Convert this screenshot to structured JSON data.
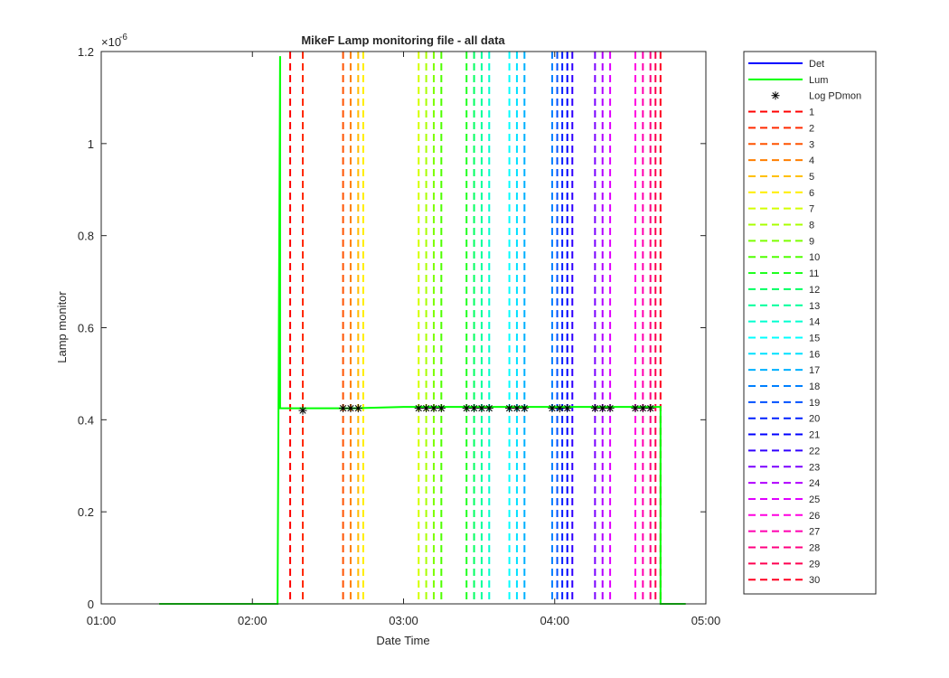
{
  "chart_data": {
    "type": "line",
    "title": "MikeF Lamp monitoring file - all data",
    "xlabel": "Date Time",
    "ylabel": "Lamp monitor",
    "y_exponent_label": "×10",
    "y_exponent_power": "-6",
    "xlim": [
      "01:00",
      "05:00"
    ],
    "ylim": [
      0,
      1.2
    ],
    "x_ticks": [
      "01:00",
      "02:00",
      "03:00",
      "04:00",
      "05:00"
    ],
    "y_ticks": [
      "0",
      "0.2",
      "0.4",
      "0.6",
      "0.8",
      "1",
      "1.2"
    ],
    "y_tick_values": [
      0,
      0.2,
      0.4,
      0.6,
      0.8,
      1.0,
      1.2
    ],
    "grid": false,
    "legend_position": "outside right",
    "series": [
      {
        "name": "Det",
        "color": "#0000ff",
        "style": "solid",
        "points": []
      },
      {
        "name": "Lum",
        "color": "#00ff00",
        "style": "solid",
        "points": [
          [
            "01:23",
            0
          ],
          [
            "02:10",
            0
          ],
          [
            "02:11",
            1.19
          ],
          [
            "02:11",
            0.425
          ],
          [
            "02:40",
            0.425
          ],
          [
            "03:00",
            0.428
          ],
          [
            "04:00",
            0.428
          ],
          [
            "04:42",
            0.428
          ],
          [
            "04:42",
            0
          ],
          [
            "04:52",
            0
          ]
        ]
      },
      {
        "name": "Log PDmon",
        "color": "#000000",
        "marker": "asterisk",
        "points": [
          [
            "02:20",
            0.42
          ],
          [
            "02:36",
            0.425
          ],
          [
            "02:39",
            0.425
          ],
          [
            "02:42",
            0.425
          ],
          [
            "03:06",
            0.425
          ],
          [
            "03:09",
            0.425
          ],
          [
            "03:12",
            0.425
          ],
          [
            "03:15",
            0.425
          ],
          [
            "03:25",
            0.425
          ],
          [
            "03:28",
            0.425
          ],
          [
            "03:31",
            0.425
          ],
          [
            "03:34",
            0.425
          ],
          [
            "03:42",
            0.425
          ],
          [
            "03:45",
            0.425
          ],
          [
            "03:48",
            0.425
          ],
          [
            "03:59",
            0.425
          ],
          [
            "04:02",
            0.425
          ],
          [
            "04:05",
            0.425
          ],
          [
            "04:16",
            0.425
          ],
          [
            "04:19",
            0.425
          ],
          [
            "04:22",
            0.425
          ],
          [
            "04:32",
            0.425
          ],
          [
            "04:35",
            0.425
          ],
          [
            "04:38",
            0.425
          ]
        ]
      }
    ],
    "markers": [
      {
        "name": "1",
        "time": "02:15",
        "color": "#ff0000"
      },
      {
        "name": "2",
        "time": "02:20",
        "color": "#ff2a00"
      },
      {
        "name": "3",
        "time": "02:36",
        "color": "#ff5400"
      },
      {
        "name": "4",
        "time": "02:39",
        "color": "#ff7f00"
      },
      {
        "name": "5",
        "time": "02:42",
        "color": "#ffc000"
      },
      {
        "name": "6",
        "time": "02:44",
        "color": "#ffee00"
      },
      {
        "name": "7",
        "time": "03:06",
        "color": "#d4ff00"
      },
      {
        "name": "8",
        "time": "03:09",
        "color": "#a8ff00"
      },
      {
        "name": "9",
        "time": "03:12",
        "color": "#7cff00"
      },
      {
        "name": "10",
        "time": "03:15",
        "color": "#50ff00"
      },
      {
        "name": "11",
        "time": "03:25",
        "color": "#20ff20"
      },
      {
        "name": "12",
        "time": "03:28",
        "color": "#00ff60"
      },
      {
        "name": "13",
        "time": "03:31",
        "color": "#00ff9a"
      },
      {
        "name": "14",
        "time": "03:34",
        "color": "#00ffd0"
      },
      {
        "name": "15",
        "time": "03:42",
        "color": "#00ffff"
      },
      {
        "name": "16",
        "time": "03:45",
        "color": "#00e0ff"
      },
      {
        "name": "17",
        "time": "03:48",
        "color": "#00b0ff"
      },
      {
        "name": "18",
        "time": "03:59",
        "color": "#0080ff"
      },
      {
        "name": "19",
        "time": "04:01",
        "color": "#0050ff"
      },
      {
        "name": "20",
        "time": "04:03",
        "color": "#0020ff"
      },
      {
        "name": "21",
        "time": "04:05",
        "color": "#0000ff"
      },
      {
        "name": "22",
        "time": "04:07",
        "color": "#3000ff"
      },
      {
        "name": "23",
        "time": "04:16",
        "color": "#7a00ff"
      },
      {
        "name": "24",
        "time": "04:19",
        "color": "#b000ff"
      },
      {
        "name": "25",
        "time": "04:22",
        "color": "#e000ff"
      },
      {
        "name": "26",
        "time": "04:32",
        "color": "#ff00e0"
      },
      {
        "name": "27",
        "time": "04:35",
        "color": "#ff00b0"
      },
      {
        "name": "28",
        "time": "04:38",
        "color": "#ff0080"
      },
      {
        "name": "29",
        "time": "04:40",
        "color": "#ff0050"
      },
      {
        "name": "30",
        "time": "04:42",
        "color": "#ff0020"
      }
    ]
  }
}
